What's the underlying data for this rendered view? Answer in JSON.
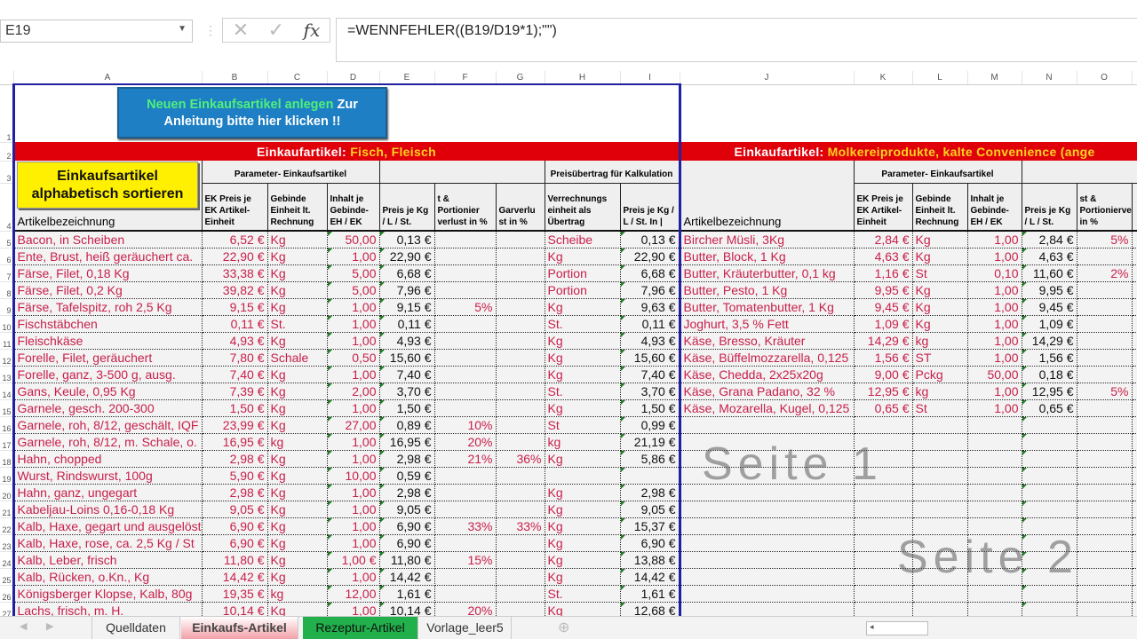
{
  "formula_bar": {
    "name_box": "E19",
    "cancel_icon": "✕",
    "enter_icon": "✓",
    "fx_label": "fx",
    "formula": "=WENNFEHLER((B19/D19*1);\"\")"
  },
  "columns": [
    "A",
    "B",
    "C",
    "D",
    "E",
    "F",
    "G",
    "H",
    "I",
    "J",
    "K",
    "L",
    "M",
    "N",
    "O",
    ""
  ],
  "buttons": {
    "new_article_green": "Neuen Einkaufsartikel anlegen",
    "new_article_white": " Zur Anleitung bitte hier klicken !!",
    "sort": "Einkaufsartikel alphabetisch sortieren"
  },
  "left": {
    "band_prefix": "Einkaufartikel: ",
    "band_category": "Fisch, Fleisch",
    "group_params": "Parameter- Einkaufsartikel",
    "group_transfer": "Preisübertrag für Kalkulation",
    "headers": [
      "Artikelbezeichnung",
      "EK Preis je EK Artikel-Einheit",
      "Gebinde Einheit lt. Rechnung",
      "Inhalt je Gebinde-EH / EK",
      "Preis je Kg / L / St.",
      "t & Portionier verlust in %",
      "Garverlu st in %",
      "Verrechnungs einheit als Übertrag",
      "Preis je Kg / L / St. In |"
    ],
    "rows": [
      [
        "Bacon, in Scheiben",
        "6,52 €",
        "Kg",
        "50,00",
        "0,13 €",
        "",
        "",
        "Scheibe",
        "0,13 €"
      ],
      [
        "Ente, Brust, heiß geräuchert ca.",
        "22,90 €",
        "Kg",
        "1,00",
        "22,90 €",
        "",
        "",
        "Kg",
        "22,90 €"
      ],
      [
        "Färse, Filet, 0,18 Kg",
        "33,38 €",
        "Kg",
        "5,00",
        "6,68 €",
        "",
        "",
        "Portion",
        "6,68 €"
      ],
      [
        "Färse, Filet, 0,2 Kg",
        "39,82 €",
        "Kg",
        "5,00",
        "7,96 €",
        "",
        "",
        "Portion",
        "7,96 €"
      ],
      [
        "Färse, Tafelspitz, roh 2,5 Kg",
        "9,15 €",
        "Kg",
        "1,00",
        "9,15 €",
        "5%",
        "",
        "Kg",
        "9,63 €"
      ],
      [
        "Fischstäbchen",
        "0,11 €",
        "St.",
        "1,00",
        "0,11 €",
        "",
        "",
        "St.",
        "0,11 €"
      ],
      [
        "Fleischkäse",
        "4,93 €",
        "Kg",
        "1,00",
        "4,93 €",
        "",
        "",
        "Kg",
        "4,93 €"
      ],
      [
        "Forelle, Filet, geräuchert",
        "7,80 €",
        "Schale",
        "0,50",
        "15,60 €",
        "",
        "",
        "Kg",
        "15,60 €"
      ],
      [
        "Forelle, ganz, 3-500 g, ausg.",
        "7,40 €",
        "Kg",
        "1,00",
        "7,40 €",
        "",
        "",
        "Kg",
        "7,40 €"
      ],
      [
        "Gans, Keule, 0,95 Kg",
        "7,39 €",
        "Kg",
        "2,00",
        "3,70 €",
        "",
        "",
        "St.",
        "3,70 €"
      ],
      [
        "Garnele, gesch. 200-300",
        "1,50 €",
        " Kg",
        "1,00",
        "1,50 €",
        "",
        "",
        "Kg",
        "1,50 €"
      ],
      [
        "Garnele, roh, 8/12, geschält, IQF",
        "23,99 €",
        "Kg",
        "27,00",
        "0,89 €",
        "10%",
        "",
        "St",
        "0,99 €"
      ],
      [
        "Garnele, roh, 8/12, m. Schale, o.",
        "16,95 €",
        "kg",
        "1,00",
        "16,95 €",
        "20%",
        "",
        "kg",
        "21,19 €"
      ],
      [
        "Hahn, chopped",
        "2,98 €",
        "Kg",
        "1,00",
        "2,98 €",
        "21%",
        "36%",
        "Kg",
        "5,86 €"
      ],
      [
        "Wurst, Rindswurst, 100g",
        "5,90 €",
        "Kg",
        "10,00",
        "0,59 €",
        "",
        "",
        "",
        ""
      ],
      [
        "Hahn, ganz, ungegart",
        "2,98 €",
        "Kg",
        "1,00",
        "2,98 €",
        "",
        "",
        "Kg",
        "2,98 €"
      ],
      [
        "Kabeljau-Loins 0,16-0,18 Kg",
        "9,05 €",
        "Kg",
        "1,00",
        "9,05 €",
        "",
        "",
        "Kg",
        "9,05 €"
      ],
      [
        "Kalb, Haxe, gegart und ausgelöst",
        "6,90 €",
        "Kg",
        "1,00",
        "6,90 €",
        "33%",
        "33%",
        "Kg",
        "15,37 €"
      ],
      [
        "Kalb, Haxe, rose, ca. 2,5 Kg / St",
        "6,90 €",
        "Kg",
        "1,00",
        "6,90 €",
        "",
        "",
        "Kg",
        "6,90 €"
      ],
      [
        "Kalb, Leber, frisch",
        "11,80 €",
        "Kg",
        "1,00 €",
        "11,80 €",
        "15%",
        "",
        "Kg",
        "13,88 €"
      ],
      [
        "Kalb, Rücken, o.Kn., Kg",
        "14,42 €",
        "Kg",
        "1,00",
        "14,42 €",
        "",
        "",
        "Kg",
        "14,42 €"
      ],
      [
        "Königsberger Klopse, Kalb, 80g",
        "19,35 €",
        "kg",
        "12,00",
        "1,61 €",
        "",
        "",
        "St.",
        "1,61 €"
      ],
      [
        "Lachs, frisch, m. H.",
        "10,14 €",
        "Kg",
        "1,00",
        "10,14 €",
        "20%",
        "",
        "Kg",
        "12,68 €"
      ]
    ]
  },
  "right": {
    "band_prefix": "Einkaufartikel: ",
    "band_category": "Molkereiprodukte, kalte Convenience (ange",
    "group_params": "Parameter- Einkaufsartikel",
    "headers": [
      "Artikelbezeichnung",
      "EK Preis je EK Artikel-Einheit",
      "Gebinde Einheit lt. Rechnung",
      "Inhalt je Gebinde-EH / EK",
      "Preis je Kg / L / St.",
      "st & Portionierverlust in %"
    ],
    "rows": [
      [
        "Bircher Müsli, 3Kg",
        "2,84 €",
        " Kg",
        "1,00",
        "2,84 €",
        "5%"
      ],
      [
        "Butter, Block, 1 Kg",
        "4,63 €",
        "Kg",
        "1,00",
        "4,63 €",
        ""
      ],
      [
        "Butter, Kräuterbutter, 0,1 kg",
        "1,16 €",
        "St",
        "0,10",
        "11,60 €",
        "2%"
      ],
      [
        "Butter, Pesto, 1 Kg",
        "9,95 €",
        "Kg",
        "1,00",
        "9,95 €",
        ""
      ],
      [
        "Butter, Tomatenbutter, 1 Kg",
        "9,45 €",
        "Kg",
        "1,00",
        "9,45 €",
        ""
      ],
      [
        "Joghurt, 3,5 % Fett",
        "1,09 €",
        "Kg",
        "1,00",
        "1,09 €",
        ""
      ],
      [
        "Käse, Bresso, Kräuter",
        "14,29 €",
        "kg",
        "1,00",
        "14,29 €",
        ""
      ],
      [
        "Käse, Büffelmozzarella, 0,125",
        "1,56 €",
        "ST",
        "1,00",
        "1,56 €",
        ""
      ],
      [
        "Käse, Chedda, 2x25x20g",
        "9,00 €",
        "Pckg",
        "50,00",
        "0,18 €",
        ""
      ],
      [
        "Käse, Grana Padano, 32 %",
        "12,95 €",
        "kg",
        "1,00",
        "12,95 €",
        "5%"
      ],
      [
        "Käse, Mozarella, Kugel, 0,125",
        "0,65 €",
        "St",
        "1,00",
        "0,65 €",
        ""
      ]
    ]
  },
  "watermarks": {
    "page1": "Seite 1",
    "page2": "Seite 2"
  },
  "sheet_tabs": [
    {
      "label": "Quelldaten",
      "active": false
    },
    {
      "label": "Einkaufs-Artikel",
      "active": true
    },
    {
      "label": "Rezeptur-Artikel",
      "active": false,
      "color": "#21b04b"
    },
    {
      "label": "Vorlage_leer5",
      "active": false
    }
  ],
  "add_sheet_icon": "⊕",
  "colors": {
    "band": "#e0000a",
    "band_category": "#ffd21f",
    "item_text": "#c8204a",
    "sort_button": "#ffef00",
    "new_button": "#1f7fc4"
  }
}
